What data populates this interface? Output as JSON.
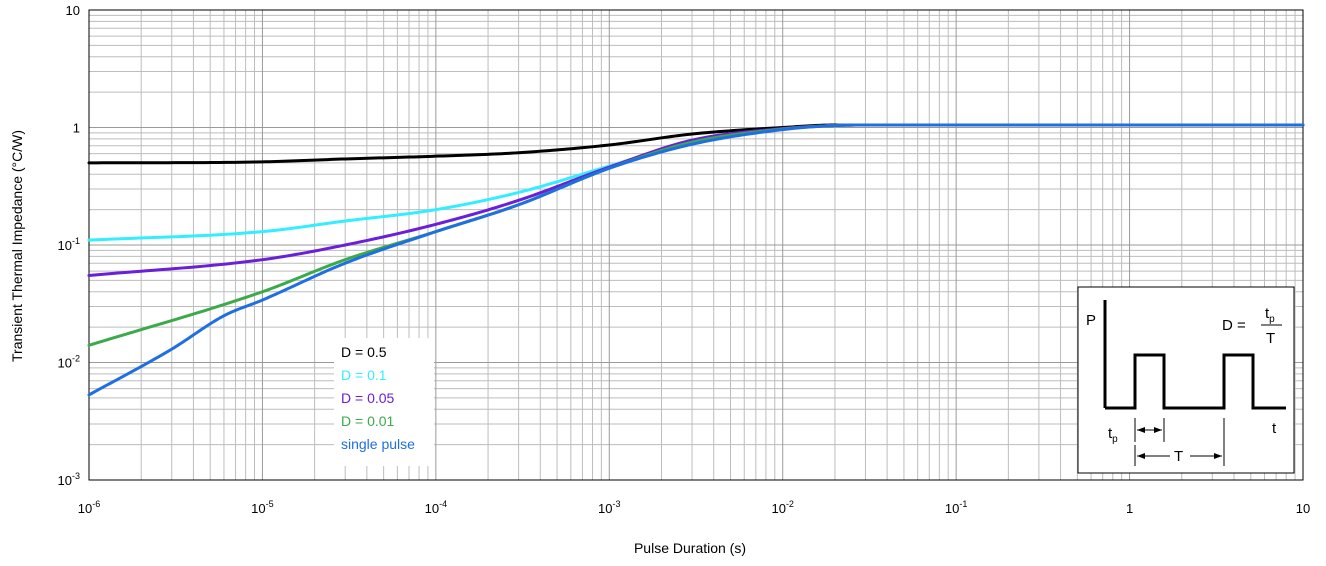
{
  "chart_data": {
    "type": "line",
    "xscale": "log",
    "yscale": "log",
    "xlim": [
      1e-06,
      10
    ],
    "ylim": [
      0.001,
      10
    ],
    "grid": true,
    "xlabel": "Pulse Duration (s)",
    "ylabel": "Transient Thermal Impedance (°C/W)",
    "x_ticks": [
      {
        "base": "10",
        "exp": "-6"
      },
      {
        "base": "10",
        "exp": "-5"
      },
      {
        "base": "10",
        "exp": "-4"
      },
      {
        "base": "10",
        "exp": "-3"
      },
      {
        "base": "10",
        "exp": "-2"
      },
      {
        "base": "10",
        "exp": "-1"
      },
      {
        "base": "1",
        "exp": ""
      },
      {
        "base": "10",
        "exp": ""
      }
    ],
    "y_ticks": [
      {
        "base": "10",
        "exp": "-3"
      },
      {
        "base": "10",
        "exp": "-2"
      },
      {
        "base": "10",
        "exp": "-1"
      },
      {
        "base": "1",
        "exp": ""
      },
      {
        "base": "10",
        "exp": ""
      }
    ],
    "legend_position": "center-left",
    "series": [
      {
        "name": "D = 0.5",
        "color": "#000000",
        "x": [
          1e-06,
          1e-05,
          3e-05,
          0.0001,
          0.0003,
          0.001,
          0.003,
          0.01,
          0.02,
          0.03,
          0.1,
          1,
          10
        ],
        "y": [
          0.5,
          0.51,
          0.54,
          0.57,
          0.61,
          0.71,
          0.88,
          1.0,
          1.05,
          1.05,
          1.05,
          1.05,
          1.05
        ]
      },
      {
        "name": "D = 0.1",
        "color": "#33eeff",
        "x": [
          1e-06,
          1e-05,
          3e-05,
          0.0001,
          0.0003,
          0.001,
          0.003,
          0.01,
          0.02,
          0.03,
          0.1,
          1,
          10
        ],
        "y": [
          0.11,
          0.13,
          0.16,
          0.2,
          0.28,
          0.47,
          0.76,
          0.97,
          1.04,
          1.05,
          1.05,
          1.05,
          1.05
        ]
      },
      {
        "name": "D = 0.05",
        "color": "#6a1fd8",
        "x": [
          1e-06,
          1e-05,
          3e-05,
          0.0001,
          0.0003,
          0.001,
          0.003,
          0.01,
          0.02,
          0.03,
          0.1,
          1,
          10
        ],
        "y": [
          0.055,
          0.075,
          0.1,
          0.15,
          0.24,
          0.46,
          0.78,
          0.98,
          1.04,
          1.05,
          1.05,
          1.05,
          1.05
        ]
      },
      {
        "name": "D = 0.01",
        "color": "#3caa4a",
        "x": [
          1e-06,
          1e-05,
          3e-05,
          0.0001,
          0.0003,
          0.001,
          0.003,
          0.01,
          0.02,
          0.03,
          0.1,
          1,
          10
        ],
        "y": [
          0.014,
          0.04,
          0.075,
          0.13,
          0.22,
          0.45,
          0.75,
          0.97,
          1.04,
          1.05,
          1.05,
          1.05,
          1.05
        ]
      },
      {
        "name": "single pulse",
        "color": "#1f6fe0",
        "x": [
          1e-06,
          3e-06,
          6e-06,
          1e-05,
          3e-05,
          0.0001,
          0.0003,
          0.001,
          0.003,
          0.01,
          0.02,
          0.03,
          0.1,
          1,
          10
        ],
        "y": [
          0.0053,
          0.013,
          0.025,
          0.034,
          0.07,
          0.13,
          0.22,
          0.45,
          0.72,
          0.96,
          1.04,
          1.05,
          1.05,
          1.05,
          1.05
        ]
      }
    ],
    "inset": {
      "p_label": "P",
      "t_label": "t",
      "tp_label": "t",
      "tp_sub": "p",
      "T_label": "T",
      "formula_prefix": "D =",
      "num_label": "t",
      "num_sub": "p",
      "den_label": "T"
    }
  }
}
